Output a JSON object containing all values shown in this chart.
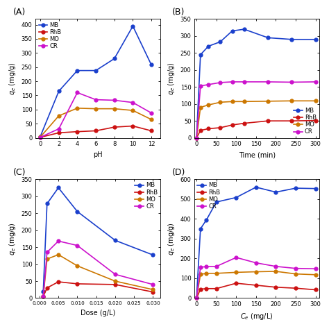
{
  "A": {
    "title": "A",
    "xlabel": "pH",
    "ylabel": "$q_e$ (mg/g)",
    "ylim": [
      0,
      420
    ],
    "yticks": [
      0,
      50,
      100,
      150,
      200,
      250,
      300,
      350,
      400
    ],
    "xlim": [
      -0.5,
      13
    ],
    "xticks": [
      0,
      2,
      4,
      6,
      8,
      10,
      12
    ],
    "legend_loc": "upper left",
    "MB": {
      "x": [
        0,
        2,
        4,
        6,
        8,
        10,
        12
      ],
      "y": [
        5,
        165,
        238,
        238,
        280,
        395,
        258
      ]
    },
    "RhB": {
      "x": [
        0,
        2,
        4,
        6,
        8,
        10,
        12
      ],
      "y": [
        2,
        18,
        22,
        25,
        38,
        42,
        25
      ]
    },
    "MO": {
      "x": [
        0,
        2,
        4,
        6,
        8,
        10,
        12
      ],
      "y": [
        3,
        78,
        105,
        103,
        103,
        97,
        65
      ]
    },
    "CR": {
      "x": [
        0,
        2,
        4,
        6,
        8,
        10,
        12
      ],
      "y": [
        2,
        32,
        160,
        135,
        133,
        125,
        88
      ]
    }
  },
  "B": {
    "title": "B",
    "xlabel": "Time (min)",
    "ylabel": "$q_e$ (mg/g)",
    "ylim": [
      0,
      350
    ],
    "yticks": [
      0,
      50,
      100,
      150,
      200,
      250,
      300,
      350
    ],
    "xlim": [
      -5,
      310
    ],
    "xticks": [
      0,
      50,
      100,
      150,
      200,
      250,
      300
    ],
    "legend_loc": "lower right",
    "MB": {
      "x": [
        0,
        10,
        30,
        60,
        90,
        120,
        180,
        240,
        300
      ],
      "y": [
        0,
        245,
        270,
        283,
        315,
        320,
        295,
        290,
        290
      ]
    },
    "RhB": {
      "x": [
        0,
        10,
        30,
        60,
        90,
        120,
        180,
        240,
        300
      ],
      "y": [
        0,
        22,
        27,
        30,
        38,
        43,
        50,
        50,
        51
      ]
    },
    "MO": {
      "x": [
        0,
        10,
        30,
        60,
        90,
        120,
        180,
        240,
        300
      ],
      "y": [
        0,
        90,
        97,
        105,
        107,
        107,
        108,
        109,
        109
      ]
    },
    "CR": {
      "x": [
        0,
        10,
        30,
        60,
        90,
        120,
        180,
        240,
        300
      ],
      "y": [
        0,
        153,
        157,
        163,
        165,
        165,
        165,
        164,
        165
      ]
    }
  },
  "C": {
    "title": "C",
    "xlabel": "Dose (g/L)",
    "ylabel": "$q_e$ (mg/g)",
    "ylim": [
      0,
      350
    ],
    "yticks": [
      0,
      50,
      100,
      150,
      200,
      250,
      300,
      350
    ],
    "xlim": [
      -0.001,
      0.032
    ],
    "xticks": [
      0.0,
      0.005,
      0.01,
      0.015,
      0.02,
      0.025,
      0.03
    ],
    "legend_loc": "upper right",
    "MB": {
      "x": [
        0.001,
        0.002,
        0.005,
        0.01,
        0.02,
        0.03
      ],
      "y": [
        20,
        278,
        325,
        255,
        170,
        127
      ]
    },
    "RhB": {
      "x": [
        0.001,
        0.002,
        0.005,
        0.01,
        0.02,
        0.03
      ],
      "y": [
        5,
        30,
        48,
        42,
        40,
        18
      ]
    },
    "MO": {
      "x": [
        0.001,
        0.002,
        0.005,
        0.01,
        0.02,
        0.03
      ],
      "y": [
        5,
        115,
        128,
        95,
        50,
        25
      ]
    },
    "CR": {
      "x": [
        0.001,
        0.002,
        0.005,
        0.01,
        0.02,
        0.03
      ],
      "y": [
        5,
        135,
        168,
        155,
        70,
        40
      ]
    }
  },
  "D": {
    "title": "D",
    "xlabel": "$C_e$ (mg/L)",
    "ylabel": "$q_e$ (mg/g)",
    "ylim": [
      0,
      600
    ],
    "yticks": [
      0,
      100,
      200,
      300,
      400,
      500,
      600
    ],
    "xlim": [
      -5,
      310
    ],
    "xticks": [
      0,
      50,
      100,
      150,
      200,
      250,
      300
    ],
    "legend_loc": "upper left",
    "MB": {
      "x": [
        0,
        10,
        25,
        50,
        100,
        150,
        200,
        250,
        300
      ],
      "y": [
        0,
        350,
        395,
        485,
        508,
        560,
        535,
        555,
        553
      ]
    },
    "RhB": {
      "x": [
        0,
        10,
        25,
        50,
        100,
        150,
        200,
        250,
        300
      ],
      "y": [
        0,
        45,
        48,
        48,
        75,
        65,
        55,
        50,
        42
      ]
    },
    "MO": {
      "x": [
        0,
        10,
        25,
        50,
        100,
        150,
        200,
        250,
        300
      ],
      "y": [
        0,
        120,
        125,
        125,
        130,
        133,
        135,
        122,
        118
      ]
    },
    "CR": {
      "x": [
        0,
        10,
        25,
        50,
        100,
        150,
        200,
        250,
        300
      ],
      "y": [
        0,
        155,
        160,
        160,
        205,
        178,
        160,
        150,
        148
      ]
    }
  },
  "colors": {
    "MB": "#1a3fcc",
    "RhB": "#cc1111",
    "MO": "#cc7700",
    "CR": "#cc11cc"
  },
  "marker": "o",
  "markersize": 3.5,
  "linewidth": 1.2
}
